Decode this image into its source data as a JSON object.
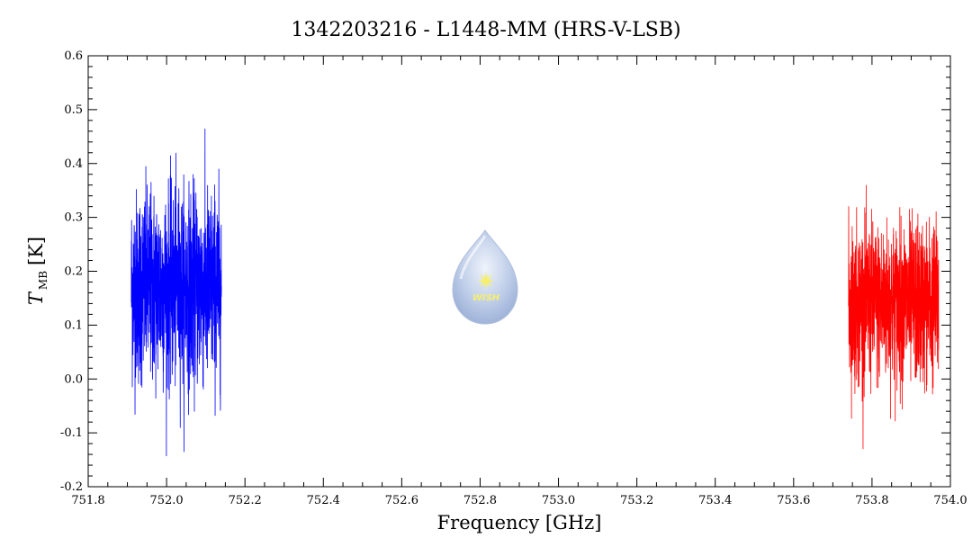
{
  "chart_data": {
    "type": "line",
    "title": "1342203216 - L1448-MM (HRS-V-LSB)",
    "xlabel": "Frequency [GHz]",
    "ylabel_main": "T",
    "ylabel_sub": "MB",
    "ylabel_unit": "[K]",
    "xlim": [
      751.8,
      754.0
    ],
    "ylim": [
      -0.2,
      0.6
    ],
    "xticks": [
      "751.8",
      "752.0",
      "752.2",
      "752.4",
      "752.6",
      "752.8",
      "753.0",
      "753.2",
      "753.4",
      "753.6",
      "753.8",
      "754.0"
    ],
    "yticks": [
      "-0.2",
      "-0.1",
      "0.0",
      "0.1",
      "0.2",
      "0.3",
      "0.4",
      "0.5",
      "0.6"
    ],
    "grid": false,
    "logo_text": "WISH",
    "series": [
      {
        "color": "#0000ff",
        "x_range": [
          751.91,
          752.14
        ],
        "baseline": 0.17,
        "noise_sigma": 0.09,
        "ymax": 0.5,
        "ymin": -0.17
      },
      {
        "color": "#ff0000",
        "x_range": [
          753.74,
          753.97
        ],
        "baseline": 0.14,
        "noise_sigma": 0.075,
        "ymax": 0.36,
        "ymin": -0.13
      }
    ]
  }
}
